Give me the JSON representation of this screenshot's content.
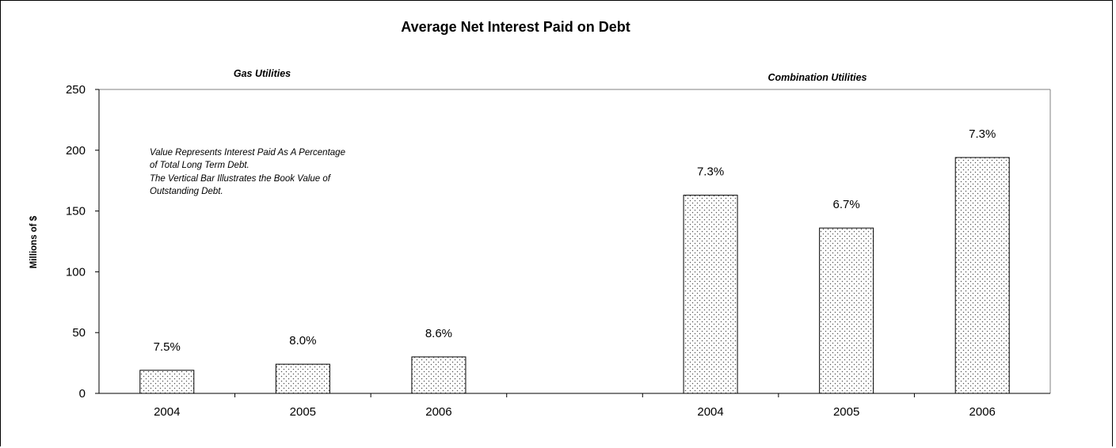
{
  "chart_data": {
    "type": "bar",
    "title": "Average Net Interest Paid on Debt",
    "ylabel": "Millions of $",
    "xlabel": "",
    "ylim": [
      0,
      250
    ],
    "yticks": [
      0,
      50,
      100,
      150,
      200,
      250
    ],
    "grid": false,
    "note_lines": [
      "Value Represents Interest Paid As A Percentage",
      "of Total Long Term Debt.",
      "The Vertical Bar Illustrates the Book Value of",
      "Outstanding Debt."
    ],
    "groups": [
      {
        "name": "Gas Utilities",
        "categories": [
          "2004",
          "2005",
          "2006"
        ],
        "values": [
          19,
          24,
          30
        ],
        "labels": [
          "7.5%",
          "8.0%",
          "8.6%"
        ]
      },
      {
        "name": "Combination Utilities",
        "categories": [
          "2004",
          "2005",
          "2006"
        ],
        "values": [
          163,
          136,
          194
        ],
        "labels": [
          "7.3%",
          "6.7%",
          "7.3%"
        ]
      }
    ]
  }
}
